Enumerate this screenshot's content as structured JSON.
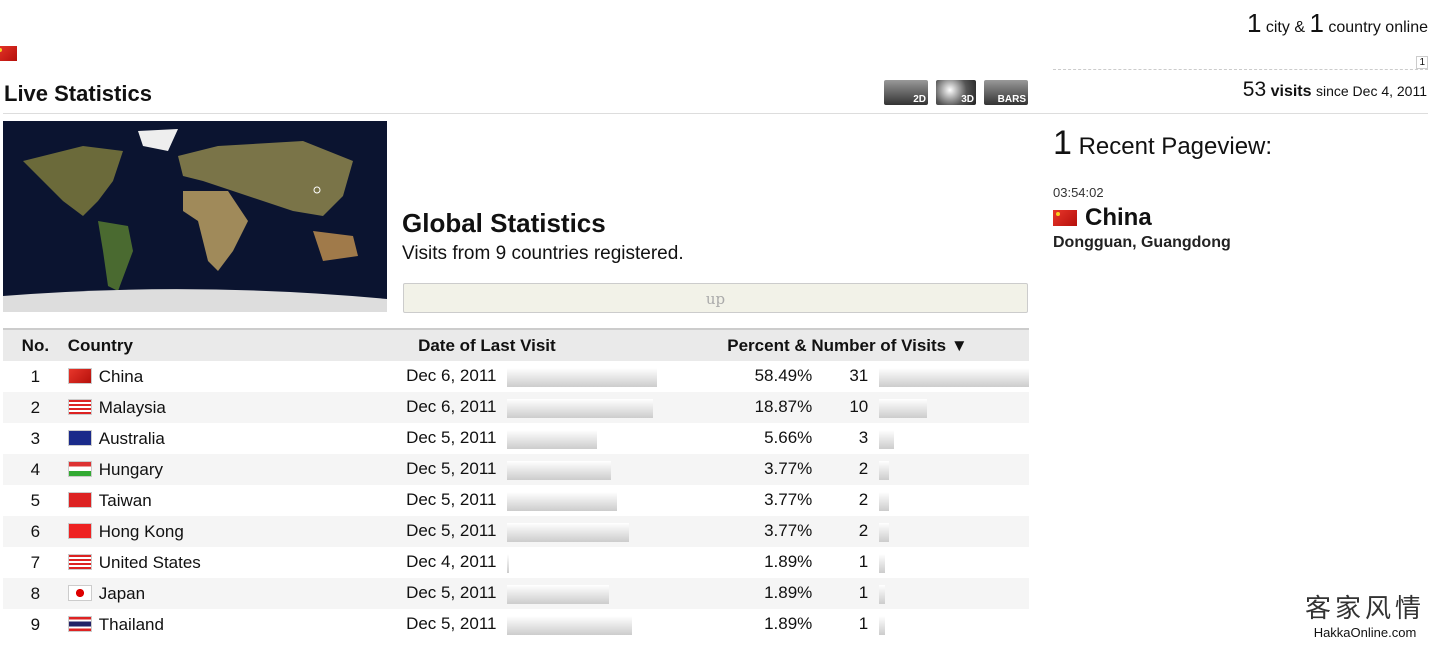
{
  "online": {
    "cities": "1",
    "city_label": "city &",
    "countries": "1",
    "country_label": "country online",
    "flag_count": "1"
  },
  "visits": {
    "count": "53",
    "label": "visits",
    "since": "since Dec 4, 2011"
  },
  "header": {
    "title": "Live Statistics",
    "views": [
      "2D",
      "3D",
      "BARS"
    ]
  },
  "global": {
    "title": "Global Statistics",
    "subtitle": "Visits from 9 countries registered.",
    "up_button": "up"
  },
  "table": {
    "headers": {
      "no": "No.",
      "country": "Country",
      "date": "Date of Last Visit",
      "visits": "Percent & Number of Visits"
    },
    "rows": [
      {
        "no": "1",
        "country": "China",
        "date": "Dec 6, 2011",
        "date_bar": 1.0,
        "percent": "58.49%",
        "count": "31",
        "flag": "cn"
      },
      {
        "no": "2",
        "country": "Malaysia",
        "date": "Dec 6, 2011",
        "date_bar": 0.97,
        "percent": "18.87%",
        "count": "10",
        "flag": "my"
      },
      {
        "no": "3",
        "country": "Australia",
        "date": "Dec 5, 2011",
        "date_bar": 0.6,
        "percent": "5.66%",
        "count": "3",
        "flag": "au"
      },
      {
        "no": "4",
        "country": "Hungary",
        "date": "Dec 5, 2011",
        "date_bar": 0.69,
        "percent": "3.77%",
        "count": "2",
        "flag": "hu"
      },
      {
        "no": "5",
        "country": "Taiwan",
        "date": "Dec 5, 2011",
        "date_bar": 0.73,
        "percent": "3.77%",
        "count": "2",
        "flag": "tw"
      },
      {
        "no": "6",
        "country": "Hong Kong",
        "date": "Dec 5, 2011",
        "date_bar": 0.81,
        "percent": "3.77%",
        "count": "2",
        "flag": "hk"
      },
      {
        "no": "7",
        "country": "United States",
        "date": "Dec 4, 2011",
        "date_bar": 0.01,
        "percent": "1.89%",
        "count": "1",
        "flag": "us"
      },
      {
        "no": "8",
        "country": "Japan",
        "date": "Dec 5, 2011",
        "date_bar": 0.68,
        "percent": "1.89%",
        "count": "1",
        "flag": "jp"
      },
      {
        "no": "9",
        "country": "Thailand",
        "date": "Dec 5, 2011",
        "date_bar": 0.83,
        "percent": "1.89%",
        "count": "1",
        "flag": "th"
      }
    ]
  },
  "recent": {
    "count": "1",
    "label": "Recent Pageview:",
    "time": "03:54:02",
    "country": "China",
    "city": "Dongguan, Guangdong"
  },
  "watermark": {
    "cn": "客家风情",
    "en": "HakkaOnline.com"
  }
}
